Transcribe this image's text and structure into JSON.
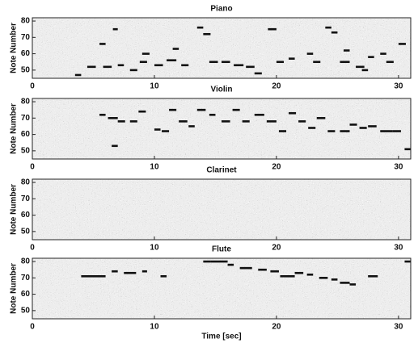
{
  "chart_data": [
    {
      "type": "pianoroll",
      "title": "Piano",
      "ylabel": "Note Number",
      "xlim": [
        0,
        31
      ],
      "ylim": [
        45,
        82
      ],
      "xticks": [
        0,
        10,
        20,
        30
      ],
      "yticks": [
        50,
        60,
        70,
        80
      ],
      "color": "#111111",
      "notes": [
        {
          "start": 3.5,
          "end": 4,
          "pitch": 47
        },
        {
          "start": 4.5,
          "end": 5.2,
          "pitch": 52
        },
        {
          "start": 5.8,
          "end": 6.5,
          "pitch": 52
        },
        {
          "start": 7,
          "end": 7.5,
          "pitch": 53
        },
        {
          "start": 8,
          "end": 8.6,
          "pitch": 50
        },
        {
          "start": 8.8,
          "end": 9.4,
          "pitch": 55
        },
        {
          "start": 10,
          "end": 10.7,
          "pitch": 53
        },
        {
          "start": 11,
          "end": 11.8,
          "pitch": 56
        },
        {
          "start": 12.2,
          "end": 12.8,
          "pitch": 53
        },
        {
          "start": 13.5,
          "end": 14,
          "pitch": 76
        },
        {
          "start": 14,
          "end": 14.6,
          "pitch": 72
        },
        {
          "start": 14.5,
          "end": 15.2,
          "pitch": 55
        },
        {
          "start": 15.5,
          "end": 16.2,
          "pitch": 55
        },
        {
          "start": 16.5,
          "end": 17.3,
          "pitch": 53
        },
        {
          "start": 17.5,
          "end": 18.2,
          "pitch": 52
        },
        {
          "start": 18.2,
          "end": 18.8,
          "pitch": 48
        },
        {
          "start": 19.3,
          "end": 20,
          "pitch": 75
        },
        {
          "start": 20,
          "end": 20.6,
          "pitch": 55
        },
        {
          "start": 21,
          "end": 21.5,
          "pitch": 57
        },
        {
          "start": 22.5,
          "end": 23,
          "pitch": 60
        },
        {
          "start": 23,
          "end": 23.6,
          "pitch": 55
        },
        {
          "start": 24,
          "end": 24.5,
          "pitch": 76
        },
        {
          "start": 24.5,
          "end": 25,
          "pitch": 73
        },
        {
          "start": 25.2,
          "end": 26,
          "pitch": 55
        },
        {
          "start": 26.5,
          "end": 27.2,
          "pitch": 52
        },
        {
          "start": 27.5,
          "end": 28,
          "pitch": 58
        },
        {
          "start": 28.5,
          "end": 29,
          "pitch": 60
        },
        {
          "start": 29,
          "end": 29.6,
          "pitch": 55
        },
        {
          "start": 30,
          "end": 30.6,
          "pitch": 66
        },
        {
          "start": 5.5,
          "end": 6,
          "pitch": 66
        },
        {
          "start": 9,
          "end": 9.6,
          "pitch": 60
        },
        {
          "start": 11.5,
          "end": 12,
          "pitch": 63
        },
        {
          "start": 6.6,
          "end": 7,
          "pitch": 75
        },
        {
          "start": 25.5,
          "end": 26,
          "pitch": 62
        },
        {
          "start": 27,
          "end": 27.5,
          "pitch": 50
        }
      ]
    },
    {
      "type": "pianoroll",
      "title": "Violin",
      "ylabel": "Note Number",
      "xlim": [
        0,
        31
      ],
      "ylim": [
        45,
        82
      ],
      "xticks": [
        0,
        10,
        20,
        30
      ],
      "yticks": [
        50,
        60,
        70,
        80
      ],
      "color": "#111111",
      "notes": [
        {
          "start": 5.5,
          "end": 6,
          "pitch": 72
        },
        {
          "start": 6.2,
          "end": 7,
          "pitch": 70
        },
        {
          "start": 7,
          "end": 7.6,
          "pitch": 68
        },
        {
          "start": 8,
          "end": 8.6,
          "pitch": 68
        },
        {
          "start": 8.7,
          "end": 9.3,
          "pitch": 74
        },
        {
          "start": 10,
          "end": 10.5,
          "pitch": 63
        },
        {
          "start": 10.6,
          "end": 11.2,
          "pitch": 62
        },
        {
          "start": 11.2,
          "end": 11.8,
          "pitch": 75
        },
        {
          "start": 12,
          "end": 12.7,
          "pitch": 68
        },
        {
          "start": 12.8,
          "end": 13.3,
          "pitch": 65
        },
        {
          "start": 13.5,
          "end": 14.2,
          "pitch": 75
        },
        {
          "start": 14.5,
          "end": 15,
          "pitch": 72
        },
        {
          "start": 15.5,
          "end": 16.2,
          "pitch": 68
        },
        {
          "start": 16.4,
          "end": 17,
          "pitch": 75
        },
        {
          "start": 17.2,
          "end": 17.8,
          "pitch": 68
        },
        {
          "start": 18.2,
          "end": 19,
          "pitch": 72
        },
        {
          "start": 19.2,
          "end": 20,
          "pitch": 68
        },
        {
          "start": 20.2,
          "end": 20.8,
          "pitch": 62
        },
        {
          "start": 21,
          "end": 21.6,
          "pitch": 73
        },
        {
          "start": 21.8,
          "end": 22.4,
          "pitch": 68
        },
        {
          "start": 22.6,
          "end": 23.2,
          "pitch": 64
        },
        {
          "start": 23.3,
          "end": 24,
          "pitch": 70
        },
        {
          "start": 24.2,
          "end": 24.8,
          "pitch": 62
        },
        {
          "start": 25.2,
          "end": 26,
          "pitch": 62
        },
        {
          "start": 26,
          "end": 26.6,
          "pitch": 66
        },
        {
          "start": 26.8,
          "end": 27.4,
          "pitch": 64
        },
        {
          "start": 27.5,
          "end": 28.2,
          "pitch": 65
        },
        {
          "start": 28.5,
          "end": 29.5,
          "pitch": 62
        },
        {
          "start": 29.5,
          "end": 30.2,
          "pitch": 62
        },
        {
          "start": 6.5,
          "end": 7,
          "pitch": 53
        },
        {
          "start": 30.5,
          "end": 31,
          "pitch": 51
        }
      ]
    },
    {
      "type": "pianoroll",
      "title": "Clarinet",
      "ylabel": "Note Number",
      "xlim": [
        0,
        31
      ],
      "ylim": [
        45,
        82
      ],
      "xticks": [
        0,
        10,
        20,
        30
      ],
      "yticks": [
        50,
        60,
        70,
        80
      ],
      "color": "#111111",
      "notes": []
    },
    {
      "type": "pianoroll",
      "title": "Flute",
      "ylabel": "Note Number",
      "xlabel": "Time [sec]",
      "xlim": [
        0,
        31
      ],
      "ylim": [
        45,
        82
      ],
      "xticks": [
        0,
        10,
        20,
        30
      ],
      "yticks": [
        50,
        60,
        70,
        80
      ],
      "color": "#111111",
      "notes": [
        {
          "start": 4,
          "end": 6,
          "pitch": 71
        },
        {
          "start": 6.5,
          "end": 7,
          "pitch": 74
        },
        {
          "start": 7.5,
          "end": 8.5,
          "pitch": 73
        },
        {
          "start": 9,
          "end": 9.4,
          "pitch": 74
        },
        {
          "start": 10.5,
          "end": 11,
          "pitch": 71
        },
        {
          "start": 14,
          "end": 14.6,
          "pitch": 80
        },
        {
          "start": 14.6,
          "end": 16,
          "pitch": 80
        },
        {
          "start": 16,
          "end": 16.5,
          "pitch": 78
        },
        {
          "start": 17,
          "end": 18,
          "pitch": 76
        },
        {
          "start": 18.5,
          "end": 19.2,
          "pitch": 75
        },
        {
          "start": 19.5,
          "end": 20.2,
          "pitch": 74
        },
        {
          "start": 20.3,
          "end": 21.5,
          "pitch": 71
        },
        {
          "start": 21.5,
          "end": 22.2,
          "pitch": 73
        },
        {
          "start": 22.5,
          "end": 23,
          "pitch": 72
        },
        {
          "start": 23.5,
          "end": 24.2,
          "pitch": 70
        },
        {
          "start": 24.5,
          "end": 25,
          "pitch": 69
        },
        {
          "start": 25.2,
          "end": 26,
          "pitch": 67
        },
        {
          "start": 26,
          "end": 26.5,
          "pitch": 66
        },
        {
          "start": 27.5,
          "end": 28.3,
          "pitch": 71
        },
        {
          "start": 30.5,
          "end": 31,
          "pitch": 80
        }
      ]
    }
  ]
}
